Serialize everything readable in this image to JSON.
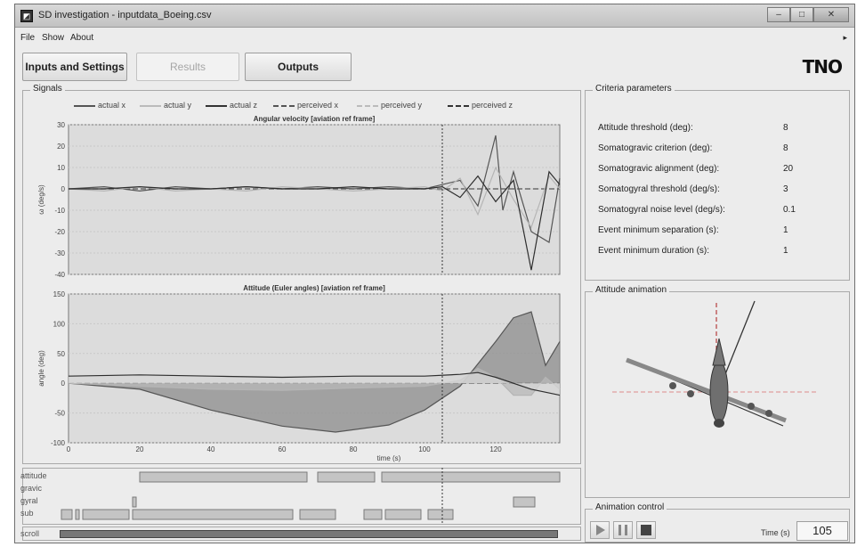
{
  "window": {
    "title": "SD investigation - inputdata_Boeing.csv",
    "controls": [
      "–",
      "□",
      "✕"
    ]
  },
  "menu": [
    "File",
    "Show",
    "About"
  ],
  "tabs": {
    "inputs": "Inputs and Settings",
    "results": "Results",
    "outputs": "Outputs"
  },
  "logo": "TNO",
  "signals": {
    "title": "Signals",
    "legend": [
      "actual x",
      "actual y",
      "actual z",
      "perceived x",
      "perceived y",
      "perceived z"
    ]
  },
  "chart_data": [
    {
      "type": "line",
      "title": "Angular velocity [aviation ref frame]",
      "xlabel": "",
      "ylabel": "ω (deg/s)",
      "xlim": [
        0,
        138
      ],
      "ylim": [
        -40,
        30
      ],
      "yticks": [
        30,
        20,
        10,
        0,
        -10,
        -20,
        -30,
        -40
      ],
      "series": [
        {
          "name": "actual x",
          "x": [
            0,
            10,
            20,
            30,
            40,
            50,
            60,
            70,
            80,
            90,
            100,
            105,
            110,
            115,
            120,
            122,
            125,
            130,
            135,
            138
          ],
          "y": [
            0,
            1,
            -1,
            1,
            0,
            1,
            0,
            1,
            0,
            1,
            0,
            2,
            4,
            -8,
            25,
            -10,
            8,
            -20,
            -25,
            5
          ]
        },
        {
          "name": "actual y",
          "x": [
            0,
            10,
            20,
            30,
            40,
            50,
            60,
            70,
            80,
            90,
            100,
            105,
            110,
            115,
            120,
            125,
            130,
            135,
            138
          ],
          "y": [
            0,
            -1,
            1,
            -1,
            0,
            -1,
            1,
            0,
            -1,
            0,
            1,
            -1,
            5,
            -12,
            10,
            -5,
            -18,
            6,
            0
          ]
        },
        {
          "name": "actual z",
          "x": [
            0,
            10,
            20,
            30,
            40,
            50,
            60,
            70,
            80,
            90,
            100,
            105,
            110,
            115,
            120,
            125,
            130,
            135,
            138
          ],
          "y": [
            0,
            0,
            1,
            0,
            0,
            1,
            0,
            0,
            1,
            0,
            0,
            1,
            -4,
            6,
            -6,
            4,
            -38,
            8,
            2
          ]
        }
      ]
    },
    {
      "type": "area",
      "title": "Attitude (Euler angles) [aviation ref frame]",
      "xlabel": "time (s)",
      "ylabel": "angle (deg)",
      "xlim": [
        0,
        138
      ],
      "ylim": [
        -100,
        150
      ],
      "xticks": [
        0,
        20,
        40,
        60,
        80,
        100,
        120
      ],
      "yticks": [
        150,
        100,
        50,
        0,
        -50,
        -100
      ],
      "series": [
        {
          "name": "actual x",
          "x": [
            0,
            20,
            40,
            60,
            75,
            90,
            100,
            110,
            120,
            125,
            130,
            134,
            138
          ],
          "y": [
            0,
            -10,
            -45,
            -72,
            -82,
            -70,
            -45,
            -5,
            70,
            110,
            120,
            30,
            70
          ]
        },
        {
          "name": "actual y",
          "x": [
            0,
            20,
            40,
            60,
            80,
            100,
            110,
            115,
            120,
            125,
            130,
            134,
            138
          ],
          "y": [
            0,
            -5,
            -10,
            -12,
            -8,
            -5,
            5,
            25,
            10,
            -20,
            -20,
            10,
            -10
          ]
        },
        {
          "name": "actual z",
          "x": [
            0,
            20,
            40,
            60,
            80,
            100,
            110,
            115,
            120,
            130,
            138
          ],
          "y": [
            12,
            14,
            12,
            10,
            12,
            12,
            15,
            18,
            10,
            -10,
            -20
          ]
        }
      ]
    }
  ],
  "cursor_time": 105,
  "timeline": {
    "labels": [
      "attitude",
      "gravic",
      "gyral",
      "sub"
    ],
    "scroll_label": "scroll",
    "events": {
      "attitude": [
        [
          20,
          67
        ],
        [
          70,
          86
        ],
        [
          88,
          138
        ]
      ],
      "gravic": [],
      "gyral": [
        [
          18,
          19
        ],
        [
          125,
          131
        ]
      ],
      "sub": [
        [
          -2,
          1
        ],
        [
          2,
          3
        ],
        [
          4,
          17
        ],
        [
          18,
          63
        ],
        [
          65,
          75
        ],
        [
          83,
          88
        ],
        [
          89,
          99
        ],
        [
          101,
          108
        ]
      ]
    }
  },
  "criteria": {
    "title": "Criteria parameters",
    "rows": [
      {
        "label": "Attitude threshold (deg):",
        "value": "8"
      },
      {
        "label": "Somatogravic criterion (deg):",
        "value": "8"
      },
      {
        "label": "Somatogravic alignment (deg):",
        "value": "20"
      },
      {
        "label": "Somatogyral threshold (deg/s):",
        "value": "3"
      },
      {
        "label": "Somatogyral noise level (deg/s):",
        "value": "0.1"
      },
      {
        "label": "Event minimum separation (s):",
        "value": "1"
      },
      {
        "label": "Event minimum duration (s):",
        "value": "1"
      }
    ]
  },
  "animation": {
    "title": "Attitude animation",
    "control_title": "Animation control",
    "time_label": "Time (s)",
    "time_value": "105",
    "icons": [
      "play-icon",
      "pause-icon",
      "stop-icon"
    ]
  }
}
